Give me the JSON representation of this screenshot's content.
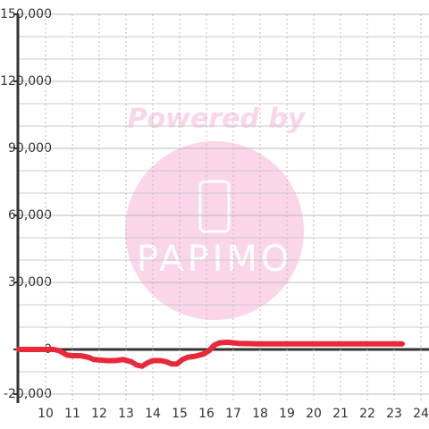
{
  "chart_data": {
    "type": "line",
    "watermark": {
      "text": "Powered by",
      "logo": "PAPIMO"
    },
    "x": [
      9.0,
      10.3,
      10.5,
      10.8,
      11.0,
      11.3,
      11.6,
      11.8,
      12.3,
      12.6,
      12.9,
      13.2,
      13.4,
      13.6,
      13.8,
      14.0,
      14.3,
      14.5,
      14.7,
      14.9,
      15.1,
      15.3,
      15.6,
      15.9,
      16.1,
      16.3,
      16.5,
      16.8,
      17.2,
      18,
      19,
      20,
      21,
      22,
      23.3
    ],
    "series": [
      {
        "color": "#e8293a",
        "values": [
          0,
          0,
          -500,
          -2500,
          -2800,
          -2800,
          -3500,
          -4500,
          -5000,
          -5000,
          -4500,
          -5500,
          -7000,
          -7500,
          -6000,
          -5000,
          -5000,
          -5500,
          -6500,
          -6500,
          -4500,
          -3500,
          -3000,
          -2000,
          -500,
          2000,
          3000,
          3200,
          2700,
          2500,
          2500,
          2500,
          2500,
          2500,
          2500
        ]
      }
    ],
    "xlim": [
      9,
      24.3
    ],
    "xticks": [
      10,
      11,
      12,
      13,
      14,
      15,
      16,
      17,
      18,
      19,
      20,
      21,
      22,
      23,
      24
    ],
    "ylim": [
      -20000,
      150000
    ],
    "yticks": [
      {
        "value": -20000,
        "label": "-20,000"
      },
      0,
      {
        "value": 30000,
        "label": "30,000"
      },
      {
        "value": 60000,
        "label": "60,000"
      },
      {
        "value": 90000,
        "label": "90,000"
      },
      {
        "value": 120000,
        "label": "120,000"
      },
      {
        "value": 150000,
        "label": "150,000"
      }
    ],
    "minor_grid_step": 10000,
    "grid": true
  }
}
